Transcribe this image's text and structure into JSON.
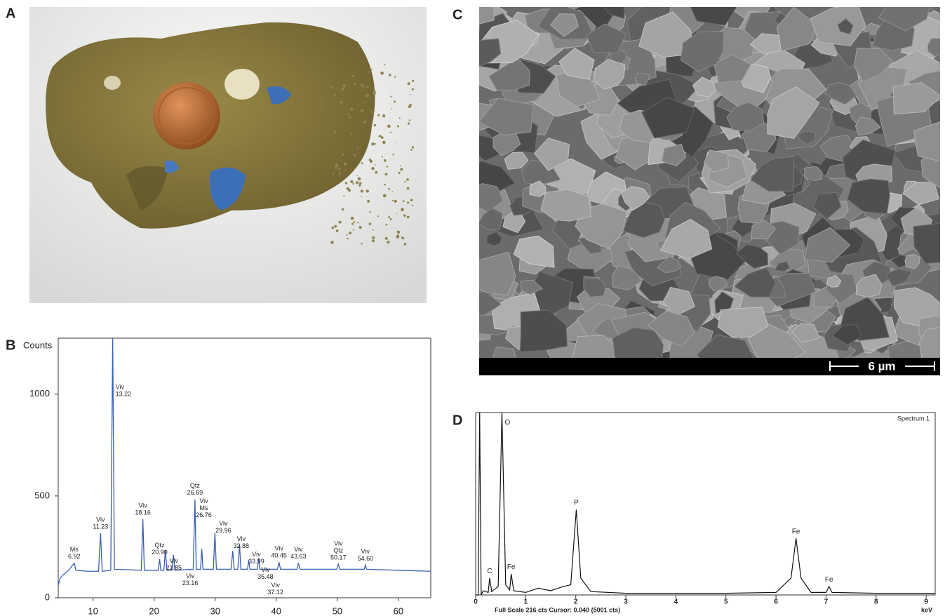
{
  "panels": {
    "a": "A",
    "b": "B",
    "c": "C",
    "d": "D"
  },
  "scale_bar": "6 µm",
  "chart_data": [
    {
      "type": "line",
      "ylabel": "Counts",
      "xlim": [
        4.3,
        65.3
      ],
      "ylim": [
        0,
        1275
      ],
      "xticks": [
        10,
        20,
        30,
        40,
        50,
        60
      ],
      "yticks": [
        0,
        500,
        1000
      ],
      "series": [
        {
          "color": "#3a5fb5",
          "x": [
            4.3,
            4.6,
            5,
            6,
            6.92,
            7.2,
            9,
            10.9,
            11.23,
            11.5,
            12.9,
            13.22,
            13.5,
            17.9,
            18.16,
            18.4,
            20.7,
            20.9,
            21.1,
            21.6,
            21.85,
            22.1,
            22.9,
            23.16,
            23.4,
            26.4,
            26.69,
            26.9,
            27.6,
            27.8,
            28.0,
            29.7,
            29.96,
            30.2,
            32.6,
            32.88,
            33.1,
            33.7,
            33.99,
            34.2,
            35.3,
            35.48,
            35.7,
            36.9,
            37.12,
            37.3,
            40.2,
            40.45,
            40.7,
            43.4,
            43.63,
            43.9,
            49.9,
            50.17,
            50.4,
            54.4,
            54.6,
            54.8,
            60,
            65.3
          ],
          "values": [
            60,
            95,
            110,
            135,
            170,
            135,
            130,
            130,
            317,
            130,
            135,
            1275,
            140,
            135,
            386,
            135,
            135,
            190,
            135,
            135,
            235,
            135,
            135,
            210,
            135,
            140,
            483,
            140,
            140,
            240,
            140,
            140,
            317,
            140,
            140,
            230,
            140,
            140,
            260,
            140,
            140,
            185,
            140,
            140,
            195,
            140,
            140,
            175,
            140,
            140,
            170,
            140,
            140,
            165,
            140,
            140,
            160,
            140,
            135,
            130
          ]
        }
      ],
      "annotations": [
        {
          "phases": [
            "Ms"
          ],
          "x": 6.92
        },
        {
          "phases": [
            "Viv"
          ],
          "x": 11.23
        },
        {
          "phases": [
            "Viv"
          ],
          "x": 13.22
        },
        {
          "phases": [
            "Viv"
          ],
          "x": 18.16
        },
        {
          "phases": [
            "Qtz"
          ],
          "x": {
            "value": 20.9,
            "label": "20.90"
          }
        },
        {
          "phases": [
            "Viv"
          ],
          "x": 21.85
        },
        {
          "phases": [
            "Viv"
          ],
          "x": 23.16
        },
        {
          "phases": [
            "Qtz"
          ],
          "x": 26.69
        },
        {
          "phases": [
            "Viv",
            "Ms"
          ],
          "x": 26.76
        },
        {
          "phases": [
            "Viv"
          ],
          "x": 29.96
        },
        {
          "phases": [
            "Viv"
          ],
          "x": 32.88
        },
        {
          "phases": [
            "Viv"
          ],
          "x": 33.99
        },
        {
          "phases": [
            "Viv"
          ],
          "x": 35.48
        },
        {
          "phases": [
            "Viv"
          ],
          "x": 37.12
        },
        {
          "phases": [
            "Viv"
          ],
          "x": 40.45
        },
        {
          "phases": [
            "Viv"
          ],
          "x": 43.63
        },
        {
          "phases": [
            "Viv",
            "Qtz"
          ],
          "x": 50.17
        },
        {
          "phases": [
            "Viv"
          ],
          "x": {
            "value": 54.6,
            "label": "54.60"
          }
        }
      ]
    },
    {
      "type": "line",
      "title": "Spectrum 1",
      "xlabel": "keV",
      "footer": "Full Scale 216 cts Cursor: 0.040 (5001 cts)",
      "xlim": [
        0,
        9.18
      ],
      "ylim": [
        0,
        216
      ],
      "xticks": [
        0,
        1,
        2,
        3,
        4,
        5,
        6,
        7,
        8,
        9
      ],
      "series": [
        {
          "color": "#111111",
          "x": [
            0,
            0.05,
            0.08,
            0.11,
            0.15,
            0.25,
            0.28,
            0.32,
            0.45,
            0.525,
            0.6,
            0.68,
            0.71,
            0.76,
            1.0,
            1.25,
            1.5,
            1.75,
            1.9,
            2.01,
            2.1,
            2.3,
            3,
            4,
            5,
            6,
            6.3,
            6.4,
            6.5,
            6.7,
            7.0,
            7.06,
            7.12,
            8,
            9.18
          ],
          "values": [
            0,
            0,
            216,
            0,
            5,
            3,
            20,
            4,
            10,
            216,
            12,
            6,
            25,
            5,
            3,
            8,
            5,
            10,
            12,
            101,
            20,
            4,
            2,
            2,
            2,
            3,
            20,
            67,
            20,
            3,
            3,
            10,
            3,
            2,
            2
          ]
        }
      ],
      "annotations": [
        {
          "label": "C",
          "x": 0.28
        },
        {
          "label": "O",
          "x": 0.525
        },
        {
          "label": "Fe",
          "x": 0.71
        },
        {
          "label": "P",
          "x": 2.01
        },
        {
          "label": "Fe",
          "x": 6.4
        },
        {
          "label": "Fe",
          "x": 7.06
        }
      ]
    }
  ]
}
